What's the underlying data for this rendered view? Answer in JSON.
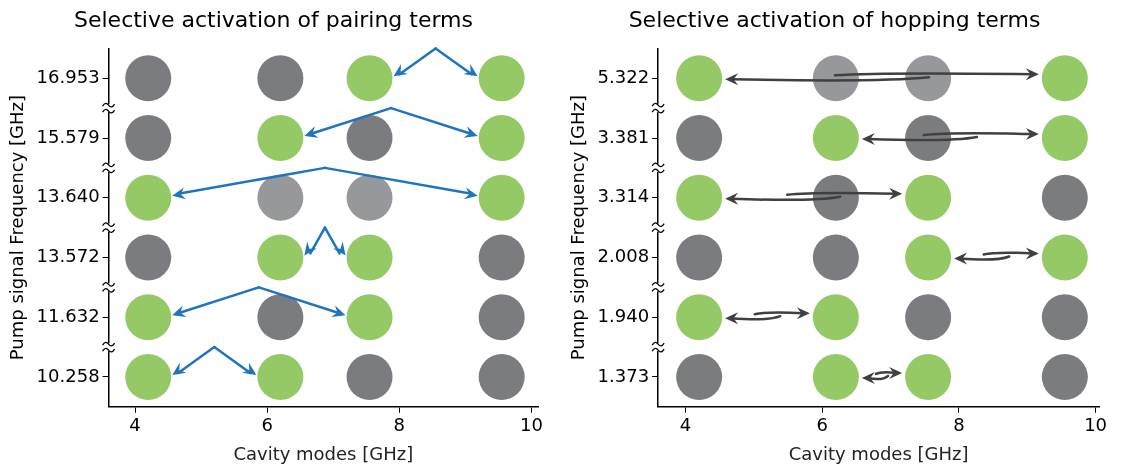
{
  "chart_data": [
    {
      "type": "scatter",
      "orientation": "horizontal",
      "title": "Selective activation of pairing terms",
      "xlabel": "Cavity modes [GHz]",
      "ylabel": "Pump signal Frequency [GHz]",
      "categories": [
        "16.953",
        "15.579",
        "13.640",
        "13.572",
        "11.632",
        "10.258"
      ],
      "series": [
        {
          "values": [
            4.2,
            4.2,
            4.2,
            4.2,
            4.2,
            4.2
          ],
          "colors": [
            "#7b7c80",
            "#7b7c80",
            "#95c965",
            "#7b7c80",
            "#95c965",
            "#95c965"
          ]
        },
        {
          "values": [
            6.2,
            6.2,
            6.2,
            6.2,
            6.2,
            6.2
          ],
          "colors": [
            "#7b7c80",
            "#95c965",
            "#97989c",
            "#95c965",
            "#7b7c80",
            "#95c965"
          ]
        },
        {
          "values": [
            7.55,
            7.55,
            7.55,
            7.55,
            7.55,
            7.55
          ],
          "colors": [
            "#95c965",
            "#7b7c80",
            "#97989c",
            "#95c965",
            "#95c965",
            "#7b7c80"
          ]
        },
        {
          "values": [
            9.55,
            9.55,
            9.55,
            9.55,
            9.55,
            9.55
          ],
          "colors": [
            "#95c965",
            "#95c965",
            "#95c965",
            "#7b7c80",
            "#7b7c80",
            "#7b7c80"
          ]
        }
      ],
      "xlim": [
        3.6,
        10.1
      ],
      "xticks": [
        4,
        6,
        8,
        10
      ],
      "marker": "circle",
      "grid": false,
      "legend": false
    },
    {
      "type": "scatter",
      "orientation": "horizontal",
      "title": "Selective activation of hopping terms",
      "xlabel": "Cavity modes [GHz]",
      "ylabel": "Pump signal Frequency [GHz]",
      "categories": [
        "5.322",
        "3.381",
        "3.314",
        "2.008",
        "1.940",
        "1.373"
      ],
      "series": [
        {
          "values": [
            4.2,
            4.2,
            4.2,
            4.2,
            4.2,
            4.2
          ],
          "colors": [
            "#95c965",
            "#7b7c80",
            "#95c965",
            "#7b7c80",
            "#95c965",
            "#7b7c80"
          ]
        },
        {
          "values": [
            6.2,
            6.2,
            6.2,
            6.2,
            6.2,
            6.2
          ],
          "colors": [
            "#97989c",
            "#95c965",
            "#7b7c80",
            "#7b7c80",
            "#95c965",
            "#95c965"
          ]
        },
        {
          "values": [
            7.55,
            7.55,
            7.55,
            7.55,
            7.55,
            7.55
          ],
          "colors": [
            "#97989c",
            "#7b7c80",
            "#95c965",
            "#95c965",
            "#7b7c80",
            "#95c965"
          ]
        },
        {
          "values": [
            9.55,
            9.55,
            9.55,
            9.55,
            9.55,
            9.55
          ],
          "colors": [
            "#95c965",
            "#95c965",
            "#7b7c80",
            "#95c965",
            "#7b7c80",
            "#7b7c80"
          ]
        }
      ],
      "xlim": [
        3.6,
        10.05
      ],
      "xticks": [
        4,
        6,
        8,
        10
      ],
      "marker": "circle",
      "grid": false,
      "legend": false
    }
  ]
}
